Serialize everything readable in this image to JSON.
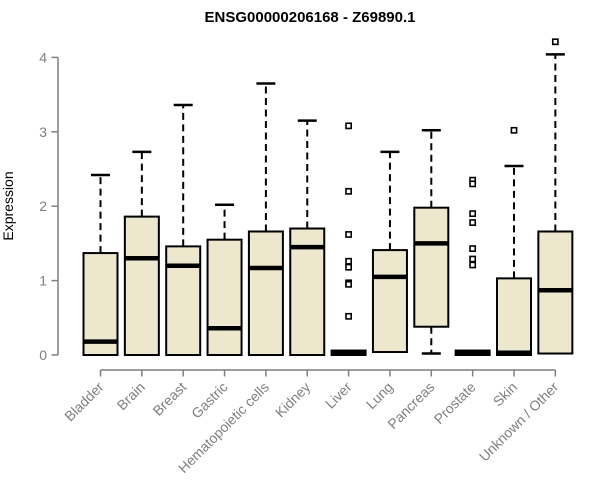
{
  "chart_data": {
    "type": "boxplot",
    "title": "ENSG00000206168 - Z69890.1",
    "xlabel": "",
    "ylabel": "Expression",
    "ylim": [
      0,
      4.3
    ],
    "yticks": [
      0,
      1,
      2,
      3,
      4
    ],
    "grid": false,
    "legend": false,
    "categories": [
      "Bladder",
      "Brain",
      "Breast",
      "Gastric",
      "Hematopoietic cells",
      "Kidney",
      "Liver",
      "Lung",
      "Pancreas",
      "Prostate",
      "Skin",
      "Unknown / Other"
    ],
    "boxes": [
      {
        "category": "Bladder",
        "whisker_low": 0,
        "q1": 0,
        "median": 0.18,
        "q3": 1.37,
        "whisker_high": 2.42,
        "outliers": []
      },
      {
        "category": "Brain",
        "whisker_low": 0,
        "q1": 0,
        "median": 1.3,
        "q3": 1.86,
        "whisker_high": 2.73,
        "outliers": []
      },
      {
        "category": "Breast",
        "whisker_low": 0,
        "q1": 0,
        "median": 1.2,
        "q3": 1.46,
        "whisker_high": 3.36,
        "outliers": []
      },
      {
        "category": "Gastric",
        "whisker_low": 0,
        "q1": 0,
        "median": 0.36,
        "q3": 1.55,
        "whisker_high": 2.02,
        "outliers": []
      },
      {
        "category": "Hematopoietic cells",
        "whisker_low": 0,
        "q1": 0,
        "median": 1.17,
        "q3": 1.66,
        "whisker_high": 3.65,
        "outliers": []
      },
      {
        "category": "Kidney",
        "whisker_low": 0,
        "q1": 0,
        "median": 1.45,
        "q3": 1.7,
        "whisker_high": 3.15,
        "outliers": []
      },
      {
        "category": "Liver",
        "whisker_low": 0,
        "q1": 0,
        "median": 0.03,
        "q3": 0.06,
        "whisker_high": 0.06,
        "outliers": [
          3.08,
          2.2,
          1.62,
          1.26,
          1.18,
          0.97,
          0.95,
          0.52
        ]
      },
      {
        "category": "Lung",
        "whisker_low": 0.04,
        "q1": 0.04,
        "median": 1.05,
        "q3": 1.41,
        "whisker_high": 2.73,
        "outliers": []
      },
      {
        "category": "Pancreas",
        "whisker_low": 0.02,
        "q1": 0.38,
        "median": 1.5,
        "q3": 1.98,
        "whisker_high": 3.02,
        "outliers": []
      },
      {
        "category": "Prostate",
        "whisker_low": 0,
        "q1": 0,
        "median": 0.03,
        "q3": 0.06,
        "whisker_high": 0.06,
        "outliers": [
          2.35,
          2.3,
          1.9,
          1.78,
          1.43,
          1.29,
          1.21
        ]
      },
      {
        "category": "Skin",
        "whisker_low": 0,
        "q1": 0,
        "median": 0.03,
        "q3": 1.03,
        "whisker_high": 2.54,
        "outliers": [
          3.02
        ]
      },
      {
        "category": "Unknown / Other",
        "whisker_low": 0.02,
        "q1": 0.02,
        "median": 0.87,
        "q3": 1.66,
        "whisker_high": 4.04,
        "outliers": [
          4.21
        ]
      }
    ],
    "colors": {
      "box_fill": "#EDE7CE",
      "box_border": "#000000",
      "median": "#000000",
      "whisker": "#000000",
      "outlier": "#000000",
      "outlier_fill": "#FFFFFF",
      "axis": "#7F7F7F",
      "tick_text": "#7F7F7F",
      "title_text": "#000000",
      "background": "#FFFFFF"
    }
  }
}
